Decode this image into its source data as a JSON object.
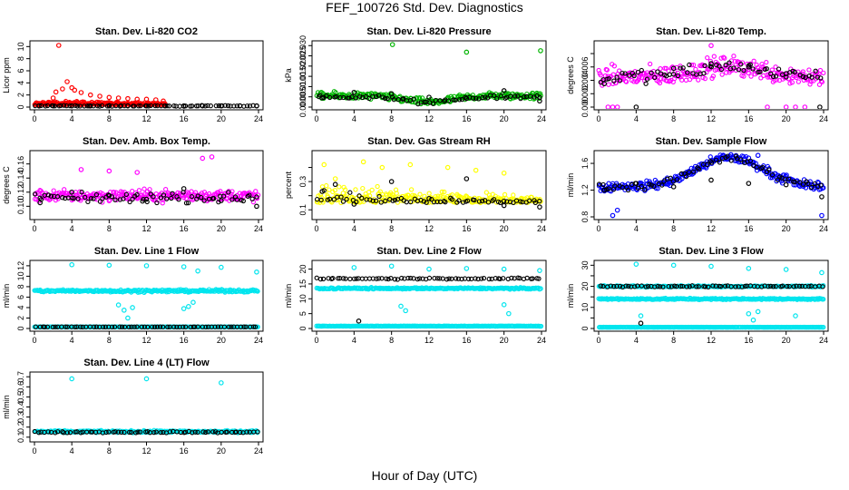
{
  "figure": {
    "title": "FEF_100726  Std. Dev. Diagnostics",
    "xlabel": "Hour of Day (UTC)"
  },
  "chart_data": [
    {
      "type": "scatter",
      "title": "Stan. Dev. Li-820 CO2",
      "ylabel": "Licor ppm",
      "xlim": [
        0,
        24
      ],
      "ylim": [
        0,
        10.5
      ],
      "xticks": [
        0,
        4,
        8,
        12,
        16,
        20,
        24
      ],
      "yticks": [
        0,
        2,
        4,
        6,
        8,
        10
      ],
      "series": [
        {
          "color": "#ff0000",
          "base": 0.4,
          "spread": 0.5,
          "x_range": [
            0,
            14
          ],
          "cloud": "low",
          "points": [
            [
              0.5,
              0.2
            ],
            [
              1,
              0.5
            ],
            [
              1.5,
              0.8
            ],
            [
              2,
              1.5
            ],
            [
              2.3,
              2.5
            ],
            [
              2.6,
              10.2
            ],
            [
              3,
              3.0
            ],
            [
              3.5,
              4.2
            ],
            [
              4,
              3.2
            ],
            [
              4.3,
              2.8
            ],
            [
              5,
              2.4
            ],
            [
              6,
              2.0
            ],
            [
              7,
              1.8
            ],
            [
              8,
              1.6
            ],
            [
              9,
              1.5
            ],
            [
              10,
              1.4
            ],
            [
              11,
              1.3
            ],
            [
              12,
              1.3
            ],
            [
              13,
              1.2
            ],
            [
              13.8,
              1.0
            ]
          ]
        },
        {
          "color": "#000000",
          "base": 0.2,
          "spread": 0.1,
          "x_range": [
            0,
            24
          ],
          "cloud": "flat",
          "points": [
            [
              0.5,
              0.2
            ],
            [
              2,
              0.2
            ],
            [
              4,
              0.2
            ],
            [
              6,
              0.2
            ],
            [
              8,
              0.2
            ],
            [
              10,
              0.2
            ],
            [
              12,
              0.2
            ],
            [
              14,
              0.2
            ],
            [
              16,
              0.2
            ],
            [
              18,
              0.2
            ],
            [
              20,
              0.2
            ],
            [
              22,
              0.2
            ],
            [
              23.8,
              0.2
            ]
          ]
        }
      ]
    },
    {
      "type": "scatter",
      "title": "Stan. Dev. Li-820 Pressure",
      "ylabel": "kPa",
      "xlim": [
        0,
        24
      ],
      "ylim": [
        0,
        0.031
      ],
      "xticks": [
        0,
        4,
        8,
        12,
        16,
        20,
        24
      ],
      "yticks": [
        0,
        0.005,
        0.01,
        0.015,
        0.02,
        0.025,
        0.03
      ],
      "ytick_labels": [
        "0.000",
        "0.005",
        "0.010",
        "0.015",
        "0.020",
        "0.025",
        "0.030"
      ],
      "series": [
        {
          "color": "#00b400",
          "base": 0.0055,
          "spread": 0.0025,
          "x_range": [
            0,
            24
          ],
          "cloud": "dip",
          "points": [
            [
              8.1,
              0.0305
            ],
            [
              16,
              0.0268
            ],
            [
              23.9,
              0.0275
            ]
          ]
        },
        {
          "color": "#000000",
          "base": 0.005,
          "spread": 0.0015,
          "x_range": [
            0,
            24
          ],
          "cloud": "dip",
          "points": [
            [
              0.6,
              0.0045
            ],
            [
              4,
              0.0072
            ],
            [
              8,
              0.0065
            ],
            [
              12,
              0.0048
            ],
            [
              16,
              0.0042
            ],
            [
              20,
              0.008
            ],
            [
              23.8,
              0.003
            ]
          ]
        }
      ]
    },
    {
      "type": "scatter",
      "title": "Stan. Dev. Li-820 Temp.",
      "ylabel": "degrees C",
      "xlim": [
        0,
        24
      ],
      "ylim": [
        0,
        0.0095
      ],
      "xticks": [
        0,
        4,
        8,
        12,
        16,
        20,
        24
      ],
      "yticks": [
        0,
        0.002,
        0.004,
        0.006,
        0.008
      ],
      "ytick_labels": [
        "0.000",
        "0.002",
        "0.004",
        "0.006",
        ""
      ],
      "series": [
        {
          "color": "#ff00ff",
          "base": 0.0045,
          "spread": 0.0022,
          "x_range": [
            0,
            24
          ],
          "cloud": "hump",
          "points": [
            [
              1,
              0.0
            ],
            [
              1.5,
              0.0
            ],
            [
              2,
              0.0
            ],
            [
              12,
              0.0092
            ],
            [
              18,
              0.0
            ],
            [
              20,
              0.0
            ],
            [
              21,
              0.0
            ],
            [
              22,
              0.0
            ]
          ]
        },
        {
          "color": "#000000",
          "base": 0.0045,
          "spread": 0.0015,
          "x_range": [
            0,
            24
          ],
          "cloud": "hump",
          "points": [
            [
              0.6,
              0.0035
            ],
            [
              4,
              0.0
            ],
            [
              8,
              0.0058
            ],
            [
              12,
              0.0065
            ],
            [
              16,
              0.006
            ],
            [
              20,
              0.005
            ],
            [
              23.6,
              0.0
            ]
          ]
        }
      ]
    },
    {
      "type": "scatter",
      "title": "Stan. Dev. Amb. Box Temp.",
      "ylabel": "degrees C",
      "xlim": [
        0,
        24
      ],
      "ylim": [
        0.085,
        0.175
      ],
      "xticks": [
        0,
        4,
        8,
        12,
        16,
        20,
        24
      ],
      "yticks": [
        0.1,
        0.12,
        0.14,
        0.16
      ],
      "ytick_labels": [
        "0.10",
        "0.12",
        "0.14",
        "0.16"
      ],
      "series": [
        {
          "color": "#ff00ff",
          "base": 0.115,
          "spread": 0.012,
          "x_range": [
            0,
            24
          ],
          "cloud": "flat",
          "points": [
            [
              5,
              0.152
            ],
            [
              8,
              0.15
            ],
            [
              11,
              0.148
            ],
            [
              18,
              0.168
            ],
            [
              19,
              0.17
            ]
          ]
        },
        {
          "color": "#000000",
          "base": 0.112,
          "spread": 0.01,
          "x_range": [
            0,
            24
          ],
          "cloud": "flat",
          "points": [
            [
              0.6,
              0.105
            ],
            [
              4,
              0.12
            ],
            [
              8,
              0.115
            ],
            [
              12,
              0.11
            ],
            [
              16,
              0.125
            ],
            [
              20,
              0.108
            ],
            [
              23.8,
              0.1
            ]
          ]
        }
      ]
    },
    {
      "type": "scatter",
      "title": "Stan. Dev. Gas Stream RH",
      "ylabel": "percent",
      "xlim": [
        0,
        24
      ],
      "ylim": [
        0.05,
        0.5
      ],
      "xticks": [
        0,
        4,
        8,
        12,
        16,
        20,
        24
      ],
      "yticks": [
        0.1,
        0.2,
        0.3,
        0.4
      ],
      "ytick_labels": [
        "0.1",
        "",
        "0.3",
        ""
      ],
      "series": [
        {
          "color": "#ffff00",
          "base": 0.15,
          "spread": 0.12,
          "x_range": [
            0,
            24
          ],
          "cloud": "low",
          "points": [
            [
              0.8,
              0.42
            ],
            [
              2,
              0.32
            ],
            [
              5,
              0.44
            ],
            [
              7,
              0.4
            ],
            [
              10,
              0.42
            ],
            [
              14,
              0.4
            ],
            [
              17,
              0.38
            ],
            [
              20,
              0.36
            ]
          ]
        },
        {
          "color": "#000000",
          "base": 0.15,
          "spread": 0.07,
          "x_range": [
            0,
            24
          ],
          "cloud": "low",
          "points": [
            [
              0.6,
              0.23
            ],
            [
              2,
              0.28
            ],
            [
              4,
              0.14
            ],
            [
              8,
              0.3
            ],
            [
              12,
              0.18
            ],
            [
              16,
              0.32
            ],
            [
              20,
              0.13
            ],
            [
              23.8,
              0.12
            ]
          ]
        }
      ]
    },
    {
      "type": "scatter",
      "title": "Stan. Dev. Sample Flow",
      "ylabel": "ml/min",
      "xlim": [
        0,
        24
      ],
      "ylim": [
        0.8,
        1.75
      ],
      "xticks": [
        0,
        4,
        8,
        12,
        16,
        20,
        24
      ],
      "yticks": [
        0.8,
        1.2,
        1.6
      ],
      "series": [
        {
          "color": "#0000ff",
          "base": 1.25,
          "spread": 0.1,
          "x_range": [
            0,
            24
          ],
          "cloud": "hump",
          "points": [
            [
              1.5,
              0.82
            ],
            [
              2,
              0.9
            ],
            [
              16,
              1.68
            ],
            [
              17,
              1.72
            ],
            [
              23.8,
              0.82
            ]
          ]
        },
        {
          "color": "#000000",
          "base": 1.25,
          "spread": 0.08,
          "x_range": [
            0,
            24
          ],
          "cloud": "hump",
          "points": [
            [
              0.6,
              1.2
            ],
            [
              4,
              1.3
            ],
            [
              8,
              1.25
            ],
            [
              12,
              1.35
            ],
            [
              16,
              1.3
            ],
            [
              20,
              1.28
            ],
            [
              23.8,
              1.1
            ]
          ]
        }
      ]
    },
    {
      "type": "scatter",
      "title": "Stan. Dev. Line 1 Flow",
      "ylabel": "ml/min",
      "xlim": [
        0,
        24
      ],
      "ylim": [
        0,
        12.5
      ],
      "xticks": [
        0,
        4,
        8,
        12,
        16,
        20,
        24
      ],
      "yticks": [
        0,
        2,
        4,
        6,
        8,
        10,
        12
      ],
      "series": [
        {
          "color": "#00e5ee",
          "base": 7.2,
          "spread": 0.35,
          "x_range": [
            0,
            24
          ],
          "cloud": "flat",
          "points": [
            [
              4,
              12.2
            ],
            [
              8,
              12.1
            ],
            [
              12,
              12.0
            ],
            [
              16,
              11.8
            ],
            [
              20,
              11.7
            ],
            [
              23.8,
              10.8
            ],
            [
              9,
              4.5
            ],
            [
              9.6,
              3.5
            ],
            [
              10,
              2.0
            ],
            [
              10.5,
              4.0
            ],
            [
              16,
              3.8
            ],
            [
              16.5,
              4.2
            ],
            [
              17,
              5.0
            ],
            [
              17.5,
              11.0
            ]
          ]
        },
        {
          "color": "#00e5ee",
          "base": 0.3,
          "spread": 0.05,
          "x_range": [
            0,
            24
          ],
          "cloud": "flat",
          "points": []
        },
        {
          "color": "#000000",
          "base": 0.3,
          "spread": 0.04,
          "x_range": [
            0,
            24
          ],
          "cloud": "flat",
          "points": []
        }
      ]
    },
    {
      "type": "scatter",
      "title": "Stan. Dev. Line 2 Flow",
      "ylabel": "ml/min",
      "xlim": [
        0,
        24
      ],
      "ylim": [
        0,
        22
      ],
      "xticks": [
        0,
        4,
        8,
        12,
        16,
        20,
        24
      ],
      "yticks": [
        0,
        5,
        10,
        15,
        20
      ],
      "series": [
        {
          "color": "#00e5ee",
          "base": 13.5,
          "spread": 0.4,
          "x_range": [
            0,
            24
          ],
          "cloud": "flat",
          "points": [
            [
              4,
              20.5
            ],
            [
              8,
              21.0
            ],
            [
              12,
              20.0
            ],
            [
              16,
              20.2
            ],
            [
              20,
              20.0
            ],
            [
              23.8,
              19.5
            ],
            [
              9,
              7.5
            ],
            [
              9.5,
              6.0
            ],
            [
              20,
              8.0
            ],
            [
              20.5,
              5.0
            ]
          ]
        },
        {
          "color": "#00e5ee",
          "base": 0.8,
          "spread": 0.08,
          "x_range": [
            0,
            24
          ],
          "cloud": "flat",
          "points": []
        },
        {
          "color": "#000000",
          "base": 16.8,
          "spread": 0.35,
          "x_range": [
            0,
            24
          ],
          "cloud": "flat",
          "points": [
            [
              4.5,
              2.5
            ]
          ]
        }
      ]
    },
    {
      "type": "scatter",
      "title": "Stan. Dev. Line 3 Flow",
      "ylabel": "ml/min",
      "xlim": [
        0,
        24
      ],
      "ylim": [
        0,
        31
      ],
      "xticks": [
        0,
        4,
        8,
        12,
        16,
        20,
        24
      ],
      "yticks": [
        0,
        5,
        10,
        15,
        20,
        25,
        30
      ],
      "ytick_labels": [
        "0",
        "",
        "10",
        "",
        "20",
        "",
        "30"
      ],
      "series": [
        {
          "color": "#00e5ee",
          "base": 14.0,
          "spread": 0.5,
          "x_range": [
            0,
            24
          ],
          "cloud": "flat",
          "points": [
            [
              4,
              30.5
            ],
            [
              8,
              30.0
            ],
            [
              12,
              29.5
            ],
            [
              16,
              28.5
            ],
            [
              20,
              28.0
            ],
            [
              23.8,
              26.5
            ],
            [
              4.5,
              6.0
            ],
            [
              16,
              7.0
            ],
            [
              16.5,
              4.0
            ],
            [
              17,
              8.0
            ],
            [
              21,
              6.0
            ]
          ]
        },
        {
          "color": "#00e5ee",
          "base": 20.0,
          "spread": 0.5,
          "x_range": [
            0,
            24
          ],
          "cloud": "flat",
          "points": []
        },
        {
          "color": "#00e5ee",
          "base": 0.6,
          "spread": 0.08,
          "x_range": [
            0,
            24
          ],
          "cloud": "flat",
          "points": []
        },
        {
          "color": "#000000",
          "base": 20.0,
          "spread": 0.45,
          "x_range": [
            0,
            24
          ],
          "cloud": "flat",
          "points": [
            [
              4.5,
              2.5
            ]
          ]
        }
      ]
    },
    {
      "type": "scatter",
      "title": "Stan. Dev. Line 4 (LT) Flow",
      "ylabel": "ml/min",
      "xlim": [
        0,
        24
      ],
      "ylim": [
        0.08,
        0.72
      ],
      "xticks": [
        0,
        4,
        8,
        12,
        16,
        20,
        24
      ],
      "yticks": [
        0.1,
        0.2,
        0.3,
        0.4,
        0.5,
        0.6,
        0.7
      ],
      "series": [
        {
          "color": "#00e5ee",
          "base": 0.155,
          "spread": 0.015,
          "x_range": [
            0,
            24
          ],
          "cloud": "flat",
          "points": [
            [
              4,
              0.68
            ],
            [
              12,
              0.68
            ],
            [
              20,
              0.64
            ]
          ]
        },
        {
          "color": "#000000",
          "base": 0.15,
          "spread": 0.01,
          "x_range": [
            0,
            24
          ],
          "cloud": "flat",
          "points": []
        }
      ]
    }
  ]
}
